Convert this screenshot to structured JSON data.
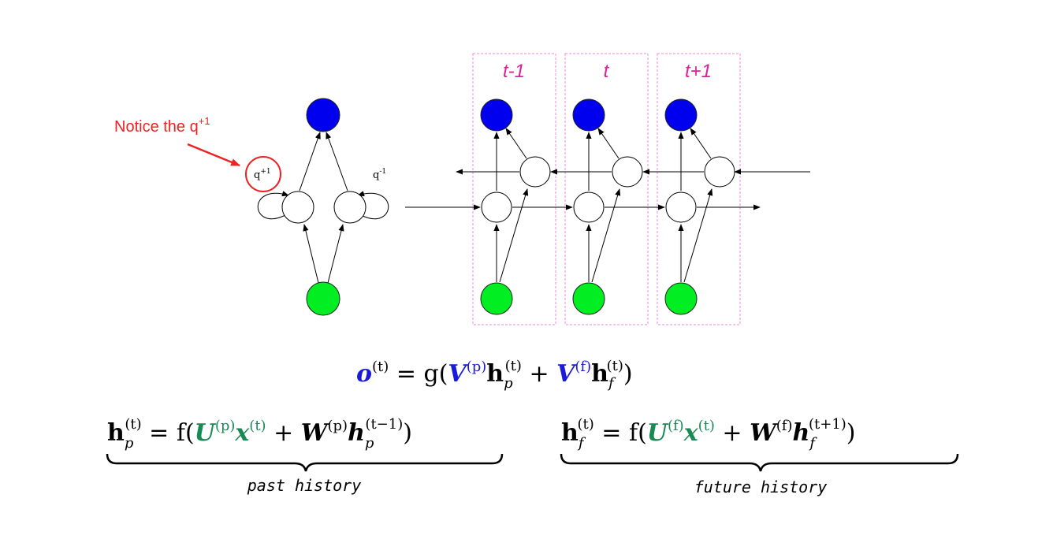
{
  "annotation": {
    "text": "Notice the q",
    "sup": "+1"
  },
  "folded": {
    "left_loop": {
      "base": "q",
      "sup": "+1"
    },
    "right_loop": {
      "base": "q",
      "sup": "-1"
    }
  },
  "timesteps": [
    "t-1",
    "t",
    "t+1"
  ],
  "equations": {
    "output": {
      "lhs": "o",
      "lhs_sup": "(t)",
      "eq": " = g(",
      "V": "V",
      "Vp_sup": "(p)",
      "h": "h",
      "hp_sub": "p",
      "hp_sup": "(t)",
      "plus": " + ",
      "Vf_sup": "(f)",
      "hf_sub": "f",
      "hf_sup": "(t)",
      "close": ")"
    },
    "past": {
      "h": "h",
      "sub": "p",
      "sup": "(t)",
      "eq": " = f(",
      "U": "U",
      "U_sup": "(p)",
      "x": "x",
      "x_sup": "(t)",
      "plus": " + ",
      "W": "W",
      "W_sup": "(p)",
      "h2": "h",
      "h2_sub": "p",
      "h2_sup": "(t−1)",
      "close": ")",
      "label": "past history"
    },
    "future": {
      "h": "h",
      "sub": "f",
      "sup": "(t)",
      "eq": " = f(",
      "U": "U",
      "U_sup": "(f)",
      "x": "x",
      "x_sup": "(t)",
      "plus": " + ",
      "W": "W",
      "W_sup": "(f)",
      "h2": "h",
      "h2_sub": "f",
      "h2_sup": "(t+1)",
      "close": ")",
      "label": "future history"
    }
  },
  "colors": {
    "output_node": "#0000ee",
    "input_node": "#00ee22",
    "annotation": "#ee2222",
    "timestep_label": "#dd2299",
    "box_border": "#ee88dd",
    "math_blue": "#1a1adb",
    "math_green": "#1a8a55"
  }
}
